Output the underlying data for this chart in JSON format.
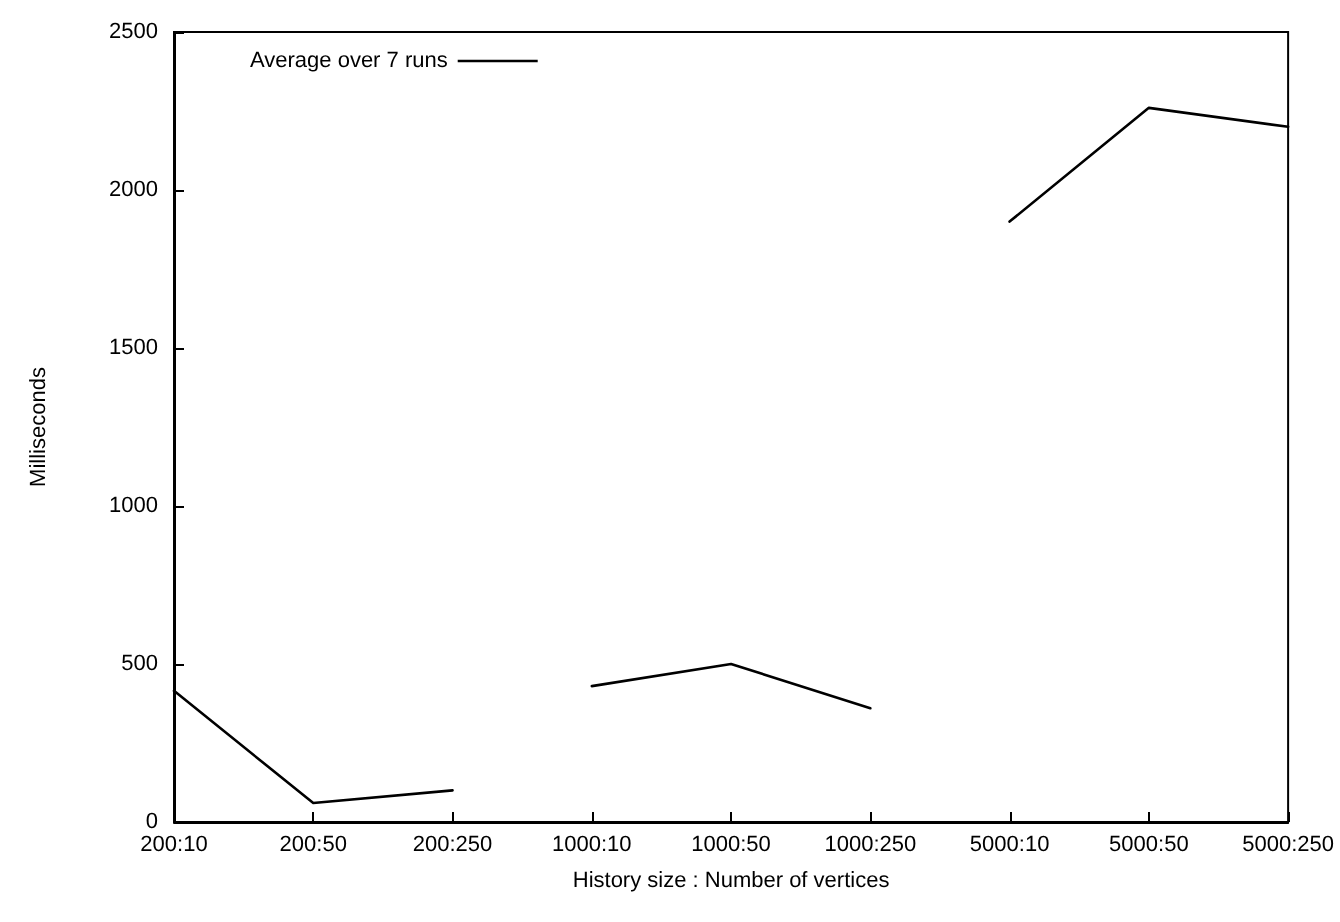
{
  "chart_data": {
    "type": "line",
    "xlabel": "History size : Number of vertices",
    "ylabel": "Milliseconds",
    "categories": [
      "200:10",
      "200:50",
      "200:250",
      "1000:10",
      "1000:50",
      "1000:250",
      "5000:10",
      "5000:50",
      "5000:250"
    ],
    "series": [
      {
        "name": "Average over 7 runs",
        "color": "#000000",
        "values": [
          415,
          60,
          100,
          null,
          null,
          null,
          null,
          null,
          null
        ]
      },
      {
        "color": "#000000",
        "values": [
          null,
          null,
          null,
          430,
          500,
          360,
          null,
          null,
          null
        ]
      },
      {
        "color": "#000000",
        "values": [
          null,
          null,
          null,
          null,
          null,
          null,
          1900,
          2260,
          2200
        ]
      }
    ],
    "ylim": [
      0,
      2500
    ],
    "yticks": [
      0,
      500,
      1000,
      1500,
      2000,
      2500
    ],
    "grid": false,
    "legend": "top left",
    "marker": "none",
    "line_style": "solid"
  }
}
